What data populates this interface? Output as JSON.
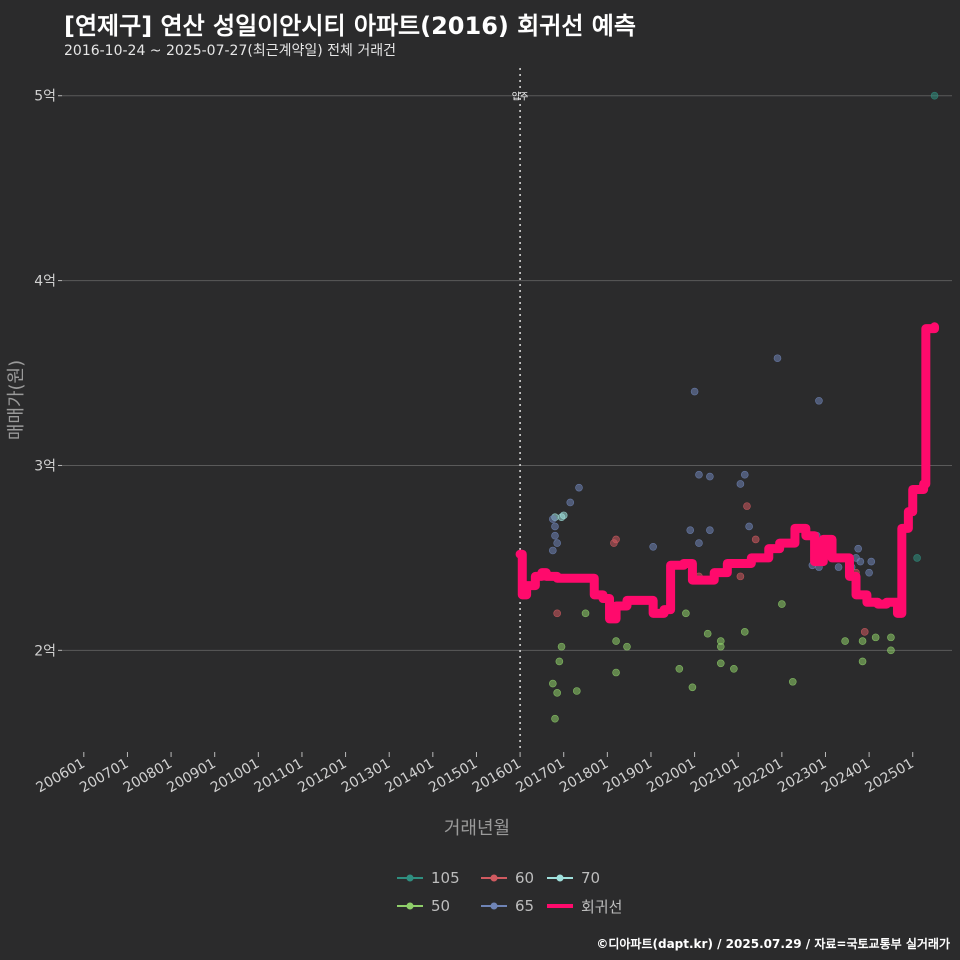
{
  "header": {
    "title": "[연제구] 연산 성일이안시티 아파트(2016) 회귀선 예측",
    "subtitle": "2016-10-24 ~ 2025-07-27(최근계약일) 전체 거래건"
  },
  "caption": "©디아파트(dapt.kr) / 2025.07.29 / 자료=국토교통부 실거래가",
  "colors": {
    "background": "#2b2b2c",
    "grid": "#5a5a5a",
    "regression": "#ff0a6c",
    "area_105": "#2f8f80",
    "area_60": "#d05a60",
    "area_70": "#9fe0dc",
    "area_50": "#8fcf6a",
    "area_65": "#6f84b6"
  },
  "chart_data": {
    "type": "scatter",
    "title": "[연제구] 연산 성일이안시티 아파트(2016) 회귀선 예측",
    "xlabel": "거래년월",
    "ylabel": "매매가(원)",
    "x_ticks": [
      "200601",
      "200701",
      "200801",
      "200901",
      "201001",
      "201101",
      "201201",
      "201301",
      "201401",
      "201501",
      "201601",
      "201701",
      "201801",
      "201901",
      "202001",
      "202101",
      "202201",
      "202301",
      "202401",
      "202501"
    ],
    "y_ticks": [
      {
        "value": 2,
        "label": "2억"
      },
      {
        "value": 3,
        "label": "3억"
      },
      {
        "value": 4,
        "label": "4억"
      },
      {
        "value": 5,
        "label": "5억"
      }
    ],
    "xlim": [
      2005.5,
      2025.9
    ],
    "ylim": [
      1.45,
      5.15
    ],
    "marker_line": {
      "x": 2016.0,
      "label": "입주"
    },
    "legend": [
      {
        "key": "105",
        "label": "105",
        "color": "#2f8f80"
      },
      {
        "key": "60",
        "label": "60",
        "color": "#d05a60"
      },
      {
        "key": "70",
        "label": "70",
        "color": "#9fe0dc"
      },
      {
        "key": "50",
        "label": "50",
        "color": "#8fcf6a"
      },
      {
        "key": "65",
        "label": "65",
        "color": "#6f84b6"
      },
      {
        "key": "reg",
        "label": "회귀선",
        "color": "#ff0a6c"
      }
    ],
    "series": [
      {
        "name": "105",
        "points": [
          [
            2025.5,
            5.0
          ],
          [
            2025.1,
            2.5
          ]
        ]
      },
      {
        "name": "60",
        "points": [
          [
            2016.85,
            2.2
          ],
          [
            2018.15,
            2.58
          ],
          [
            2018.2,
            2.6
          ],
          [
            2020.1,
            2.4
          ],
          [
            2021.2,
            2.78
          ],
          [
            2021.4,
            2.6
          ],
          [
            2021.05,
            2.4
          ],
          [
            2023.7,
            2.42
          ],
          [
            2023.9,
            2.1
          ]
        ]
      },
      {
        "name": "70",
        "points": [
          [
            2016.8,
            2.72
          ],
          [
            2016.95,
            2.72
          ],
          [
            2017.0,
            2.73
          ]
        ]
      },
      {
        "name": "50",
        "points": [
          [
            2016.75,
            1.82
          ],
          [
            2016.8,
            1.63
          ],
          [
            2016.85,
            1.77
          ],
          [
            2016.9,
            1.94
          ],
          [
            2016.95,
            2.02
          ],
          [
            2017.3,
            1.78
          ],
          [
            2017.5,
            2.2
          ],
          [
            2018.2,
            2.05
          ],
          [
            2018.2,
            1.88
          ],
          [
            2018.45,
            2.02
          ],
          [
            2019.65,
            1.9
          ],
          [
            2019.8,
            2.2
          ],
          [
            2019.95,
            1.8
          ],
          [
            2020.3,
            2.09
          ],
          [
            2020.6,
            1.93
          ],
          [
            2020.6,
            2.05
          ],
          [
            2020.6,
            2.02
          ],
          [
            2020.9,
            1.9
          ],
          [
            2021.15,
            2.1
          ],
          [
            2022.0,
            2.25
          ],
          [
            2022.25,
            1.83
          ],
          [
            2023.45,
            2.05
          ],
          [
            2023.85,
            2.05
          ],
          [
            2023.85,
            1.94
          ],
          [
            2024.15,
            2.07
          ],
          [
            2024.5,
            2.07
          ],
          [
            2024.5,
            2.0
          ]
        ]
      },
      {
        "name": "65",
        "points": [
          [
            2016.75,
            2.54
          ],
          [
            2016.8,
            2.62
          ],
          [
            2016.8,
            2.67
          ],
          [
            2016.85,
            2.58
          ],
          [
            2016.75,
            2.71
          ],
          [
            2017.15,
            2.8
          ],
          [
            2017.35,
            2.88
          ],
          [
            2019.05,
            2.56
          ],
          [
            2019.9,
            2.65
          ],
          [
            2020.0,
            3.4
          ],
          [
            2020.1,
            2.95
          ],
          [
            2020.1,
            2.58
          ],
          [
            2020.35,
            2.94
          ],
          [
            2020.35,
            2.65
          ],
          [
            2021.05,
            2.9
          ],
          [
            2021.15,
            2.95
          ],
          [
            2021.25,
            2.67
          ],
          [
            2021.9,
            3.58
          ],
          [
            2022.7,
            2.46
          ],
          [
            2022.8,
            2.62
          ],
          [
            2022.85,
            3.35
          ],
          [
            2022.85,
            2.45
          ],
          [
            2023.3,
            2.45
          ],
          [
            2023.6,
            2.45
          ],
          [
            2023.7,
            2.5
          ],
          [
            2023.75,
            2.55
          ],
          [
            2023.8,
            2.48
          ],
          [
            2024.0,
            2.42
          ],
          [
            2024.05,
            2.48
          ]
        ]
      }
    ],
    "regression": [
      [
        2016.0,
        2.52
      ],
      [
        2016.05,
        2.3
      ],
      [
        2016.15,
        2.35
      ],
      [
        2016.35,
        2.4
      ],
      [
        2016.5,
        2.42
      ],
      [
        2016.6,
        2.4
      ],
      [
        2016.85,
        2.39
      ],
      [
        2017.2,
        2.39
      ],
      [
        2017.55,
        2.39
      ],
      [
        2017.7,
        2.3
      ],
      [
        2017.9,
        2.28
      ],
      [
        2018.05,
        2.17
      ],
      [
        2018.2,
        2.24
      ],
      [
        2018.45,
        2.27
      ],
      [
        2018.8,
        2.27
      ],
      [
        2019.05,
        2.2
      ],
      [
        2019.3,
        2.22
      ],
      [
        2019.45,
        2.46
      ],
      [
        2019.75,
        2.47
      ],
      [
        2019.95,
        2.38
      ],
      [
        2020.2,
        2.38
      ],
      [
        2020.45,
        2.42
      ],
      [
        2020.75,
        2.47
      ],
      [
        2021.0,
        2.47
      ],
      [
        2021.3,
        2.5
      ],
      [
        2021.7,
        2.55
      ],
      [
        2021.95,
        2.58
      ],
      [
        2022.3,
        2.66
      ],
      [
        2022.55,
        2.62
      ],
      [
        2022.75,
        2.48
      ],
      [
        2022.95,
        2.6
      ],
      [
        2023.15,
        2.5
      ],
      [
        2023.35,
        2.5
      ],
      [
        2023.55,
        2.4
      ],
      [
        2023.7,
        2.3
      ],
      [
        2023.95,
        2.26
      ],
      [
        2024.2,
        2.25
      ],
      [
        2024.4,
        2.26
      ],
      [
        2024.65,
        2.2
      ],
      [
        2024.75,
        2.66
      ],
      [
        2024.9,
        2.75
      ],
      [
        2025.0,
        2.87
      ],
      [
        2025.25,
        2.9
      ],
      [
        2025.3,
        3.74
      ],
      [
        2025.5,
        3.75
      ]
    ]
  }
}
